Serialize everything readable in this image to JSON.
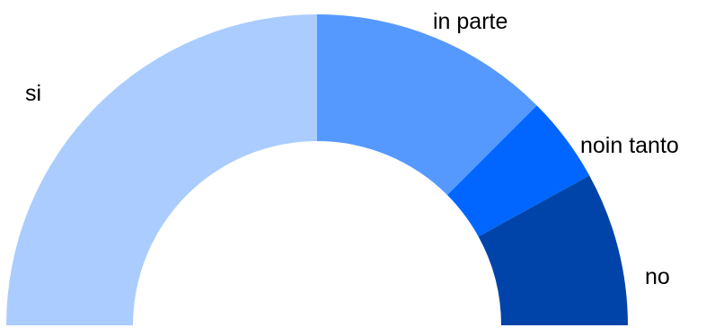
{
  "chart_data": {
    "type": "pie",
    "variant": "semi-donut",
    "title": "",
    "legend": "none",
    "categories": [
      "si",
      "in parte",
      "noin tanto",
      "no"
    ],
    "values": [
      50,
      25,
      9,
      16
    ],
    "colors": [
      "#aaccff",
      "#5599ff",
      "#0066ff",
      "#0044aa"
    ]
  }
}
